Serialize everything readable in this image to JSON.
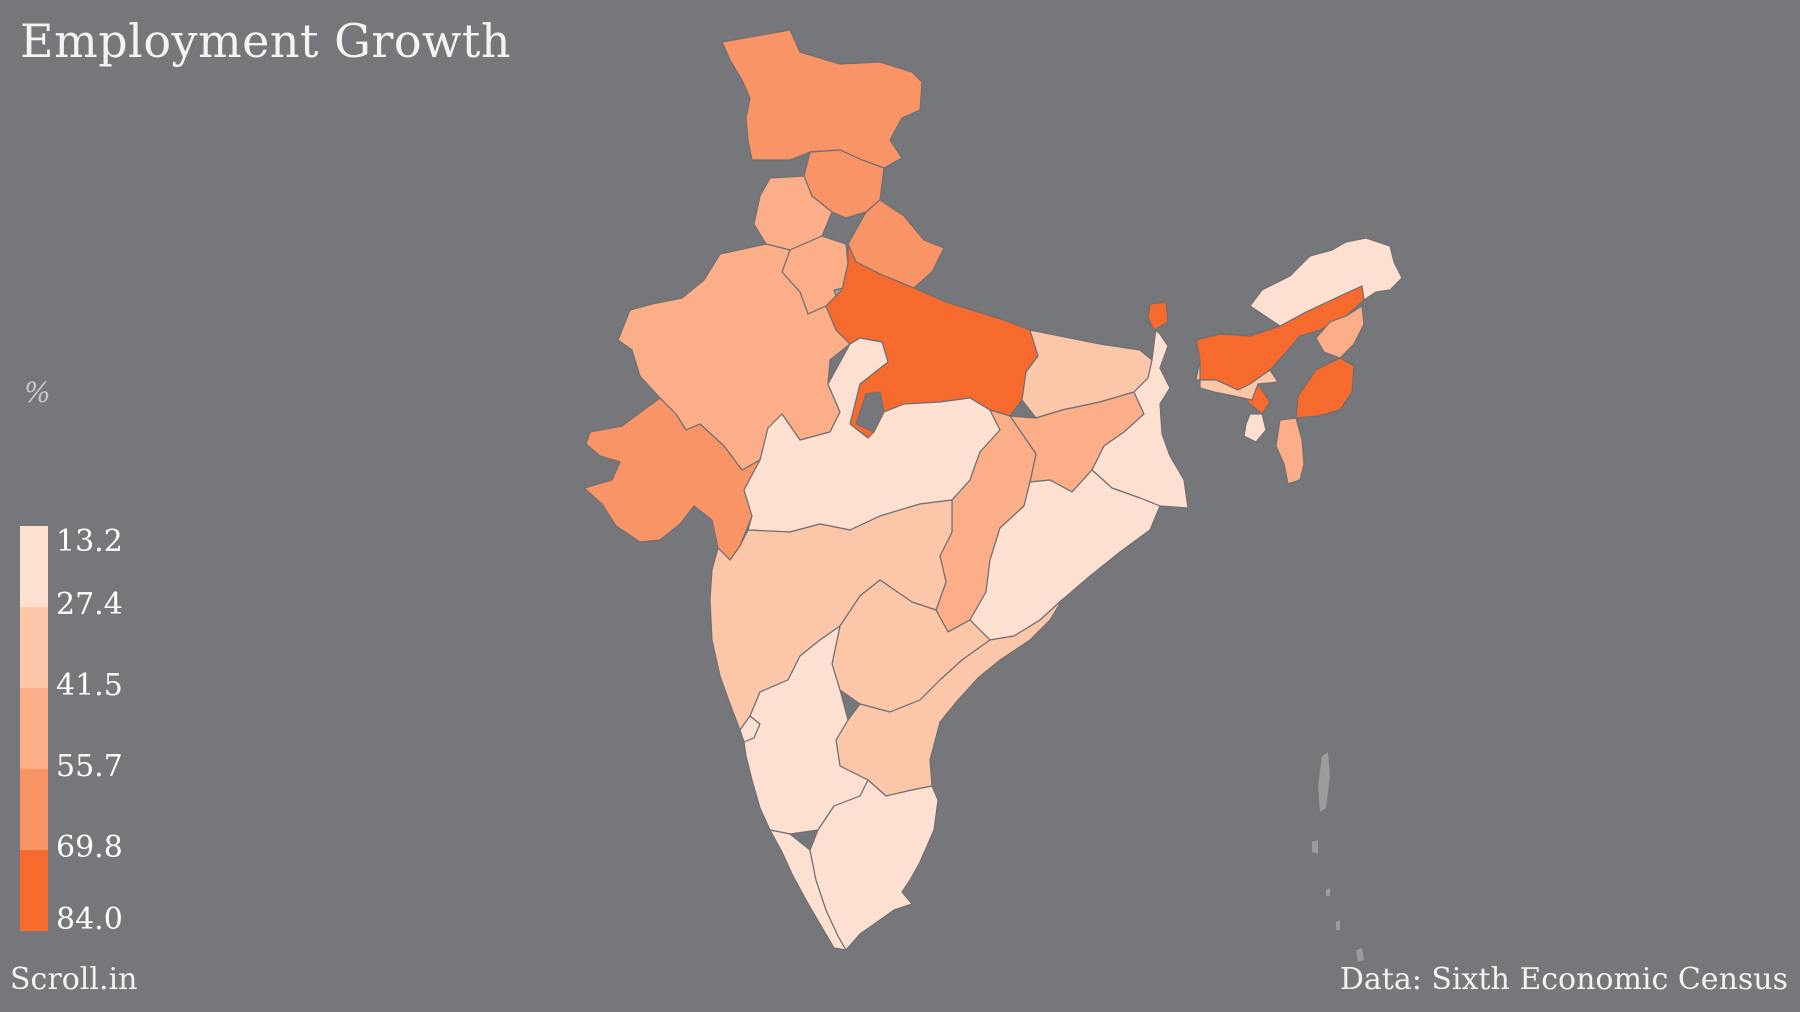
{
  "title": "Employment Growth",
  "unit": "%",
  "source_left": "Scroll.in",
  "source_right": "Data: Sixth Economic Census",
  "legend": {
    "breaks": [
      "13.2",
      "27.4",
      "41.5",
      "55.7",
      "69.8",
      "84.0"
    ],
    "colors": [
      "#fde0cf",
      "#fcc7a8",
      "#fbae87",
      "#f99466",
      "#f87b46",
      "#f76a2e"
    ]
  },
  "colors": {
    "background": "#76777b",
    "no_data": "#9c9c9f",
    "border": "#6f6f73"
  }
}
